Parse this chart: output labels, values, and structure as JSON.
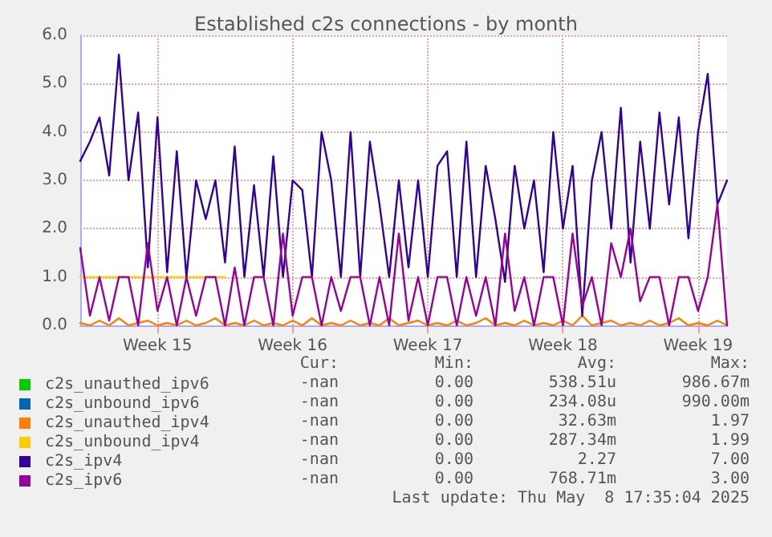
{
  "chart_data": {
    "type": "line",
    "title": "Established c2s connections - by month",
    "categories": [
      null,
      null,
      null,
      null,
      null,
      null,
      null,
      null,
      "Week 15",
      null,
      null,
      null,
      null,
      null,
      null,
      null,
      null,
      null,
      null,
      null,
      null,
      null,
      "Week 16",
      null,
      null,
      null,
      null,
      null,
      null,
      null,
      null,
      null,
      null,
      null,
      null,
      null,
      "Week 17",
      null,
      null,
      null,
      null,
      null,
      null,
      null,
      null,
      null,
      null,
      null,
      null,
      null,
      "Week 18",
      null,
      null,
      null,
      null,
      null,
      null,
      null,
      null,
      null,
      null,
      null,
      null,
      null,
      "Week 19",
      null,
      null,
      null
    ],
    "ylim": [
      0,
      6
    ],
    "yticks": [
      {
        "value": 0,
        "label": "0.0"
      },
      {
        "value": 1,
        "label": "1.0"
      },
      {
        "value": 2,
        "label": "2.0"
      },
      {
        "value": 3,
        "label": "3.0"
      },
      {
        "value": 4,
        "label": "4.0"
      },
      {
        "value": 5,
        "label": "5.0"
      },
      {
        "value": 6,
        "label": "6.0"
      }
    ],
    "grid": true,
    "legend": "bottom",
    "marker": "none",
    "line_style": "solid",
    "series": [
      {
        "name": "c2s_unauthed_ipv6",
        "color": "#00cc00",
        "values": [
          null,
          null,
          null,
          null,
          null,
          null,
          null,
          null,
          null,
          null,
          null,
          null,
          null,
          null,
          null,
          null,
          null,
          null,
          null,
          null,
          null,
          null,
          null,
          null,
          null,
          null,
          null,
          null,
          null,
          null,
          null,
          null,
          null,
          null,
          null,
          null,
          null,
          null,
          null,
          null,
          null,
          null,
          null,
          null,
          null,
          null,
          null,
          null,
          null,
          null,
          null,
          null,
          null,
          null,
          null,
          null,
          null,
          null,
          null,
          null,
          null,
          null,
          null,
          null,
          null,
          null,
          null,
          null
        ]
      },
      {
        "name": "c2s_unbound_ipv6",
        "color": "#0066b3",
        "values": [
          null,
          null,
          null,
          null,
          null,
          null,
          null,
          null,
          null,
          null,
          null,
          null,
          null,
          null,
          null,
          null,
          null,
          null,
          null,
          null,
          null,
          null,
          null,
          null,
          null,
          null,
          null,
          null,
          null,
          null,
          null,
          null,
          null,
          null,
          null,
          null,
          null,
          null,
          null,
          null,
          null,
          null,
          null,
          null,
          null,
          null,
          null,
          null,
          null,
          null,
          null,
          null,
          null,
          null,
          null,
          null,
          null,
          null,
          null,
          null,
          null,
          null,
          null,
          null,
          null,
          null,
          null,
          null
        ]
      },
      {
        "name": "c2s_unauthed_ipv4",
        "color": "#ff8000",
        "values": [
          0.05,
          0,
          0.1,
          0,
          0.15,
          0,
          0.05,
          0.1,
          0,
          0.05,
          0,
          0.1,
          0,
          0.05,
          0.15,
          0,
          0.05,
          0,
          0.1,
          0,
          0.05,
          0,
          0.1,
          0,
          0.15,
          0,
          0.05,
          0,
          0.1,
          0,
          0.05,
          0,
          0.15,
          0,
          0.05,
          0.1,
          0,
          0.05,
          0,
          0.1,
          0,
          0.05,
          0.15,
          0,
          0.05,
          0,
          0.1,
          0,
          0.05,
          0,
          0.1,
          0,
          0.2,
          0,
          0.05,
          0.1,
          0,
          0.05,
          0,
          0.1,
          0,
          0.05,
          0.15,
          0,
          0.05,
          0,
          0.1,
          0
        ]
      },
      {
        "name": "c2s_unbound_ipv4",
        "color": "#ffcc00",
        "values": [
          1,
          1,
          1,
          1,
          1,
          1,
          1,
          1,
          1,
          1,
          1,
          1,
          1,
          1,
          1,
          1,
          null,
          null,
          null,
          null,
          null,
          null,
          null,
          null,
          null,
          null,
          null,
          null,
          null,
          null,
          null,
          null,
          null,
          null,
          null,
          null,
          null,
          null,
          null,
          null,
          null,
          null,
          null,
          null,
          null,
          null,
          null,
          null,
          null,
          null,
          null,
          null,
          null,
          null,
          null,
          null,
          null,
          null,
          null,
          null,
          null,
          null,
          null,
          null,
          null,
          null,
          null,
          null
        ]
      },
      {
        "name": "c2s_ipv4",
        "color": "#330099",
        "values": [
          3.4,
          3.8,
          4.3,
          3.1,
          5.6,
          3.0,
          4.4,
          1.2,
          4.3,
          1.1,
          3.6,
          1.0,
          3.0,
          2.2,
          3.0,
          1.3,
          3.7,
          1.0,
          2.9,
          1.0,
          3.5,
          1.0,
          3.0,
          2.8,
          1.0,
          4.0,
          3.0,
          1.0,
          4.0,
          1.0,
          3.8,
          2.5,
          1.0,
          3.0,
          1.2,
          3.0,
          1.0,
          3.3,
          3.6,
          1.0,
          3.8,
          1.0,
          3.3,
          2.2,
          0.9,
          3.3,
          2.0,
          3.0,
          1.1,
          4.0,
          2.0,
          3.3,
          0.2,
          3.0,
          4.0,
          2.0,
          4.5,
          1.3,
          3.8,
          2.0,
          4.4,
          2.5,
          4.3,
          1.8,
          4.0,
          5.2,
          2.5,
          3.0
        ]
      },
      {
        "name": "c2s_ipv6",
        "color": "#990099",
        "values": [
          1.6,
          0.2,
          1.0,
          0.1,
          1.0,
          1.0,
          0.0,
          1.7,
          0.3,
          1.0,
          0.0,
          1.0,
          0.2,
          1.0,
          1.0,
          0.0,
          1.2,
          0.0,
          1.0,
          1.0,
          0.0,
          1.9,
          0.2,
          1.0,
          1.0,
          0.0,
          1.0,
          0.3,
          1.0,
          1.0,
          0.0,
          1.0,
          0.0,
          1.9,
          0.1,
          1.0,
          0.0,
          1.0,
          1.0,
          0.0,
          1.0,
          0.2,
          1.0,
          0.0,
          1.9,
          0.3,
          1.0,
          0.0,
          1.0,
          1.0,
          0.0,
          1.9,
          0.4,
          1.0,
          0.0,
          1.7,
          1.0,
          2.0,
          0.5,
          1.0,
          1.0,
          0.0,
          1.0,
          1.0,
          0.3,
          1.0,
          2.5,
          0.0
        ]
      }
    ],
    "annotations": [
      "Cur:",
      "Min:",
      "Avg:",
      "Max:",
      "-nan",
      "0.00",
      "538.51u",
      "986.67m",
      "-nan",
      "0.00",
      "234.08u",
      "990.00m",
      "-nan",
      "0.00",
      "32.63m",
      "1.97",
      "-nan",
      "0.00",
      "287.34m",
      "1.99",
      "-nan",
      "0.00",
      "2.27",
      "7.00",
      "-nan",
      "0.00",
      "768.71m",
      "3.00",
      "Last update: Thu May  8 17:35:04 2025"
    ]
  }
}
